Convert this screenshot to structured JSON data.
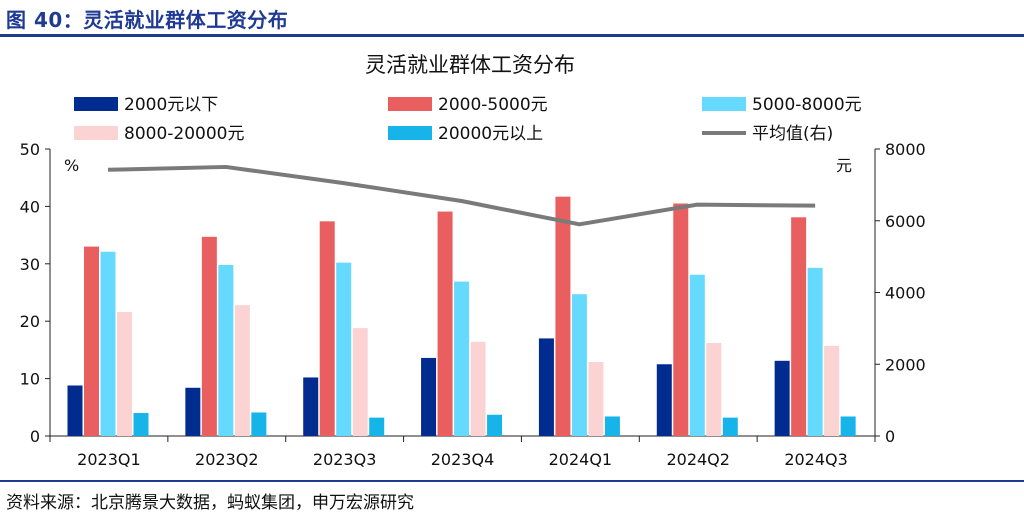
{
  "figure_label": "图 40：灵活就业群体工资分布",
  "source": "资料来源：北京腾景大数据，蚂蚁集团，申万宏源研究",
  "colors": {
    "brand": "#1f3a93",
    "series": [
      "#002b8f",
      "#e95f5f",
      "#66d9ff",
      "#fbd3d3",
      "#16b4e8",
      "#7a7a7a"
    ]
  },
  "chart_data": {
    "type": "bar",
    "title": "灵活就业群体工资分布",
    "categories": [
      "2023Q1",
      "2023Q2",
      "2023Q3",
      "2023Q4",
      "2024Q1",
      "2024Q2",
      "2024Q3"
    ],
    "series": [
      {
        "name": "2000元以下",
        "type": "bar",
        "axis": "left",
        "values": [
          8.8,
          8.4,
          10.2,
          13.6,
          17.0,
          12.5,
          13.1
        ]
      },
      {
        "name": "2000-5000元",
        "type": "bar",
        "axis": "left",
        "values": [
          33.0,
          34.7,
          37.4,
          39.1,
          41.7,
          40.5,
          38.1
        ]
      },
      {
        "name": "5000-8000元",
        "type": "bar",
        "axis": "left",
        "values": [
          32.1,
          29.8,
          30.2,
          26.9,
          24.7,
          28.1,
          29.3
        ]
      },
      {
        "name": "8000-20000元",
        "type": "bar",
        "axis": "left",
        "values": [
          21.6,
          22.8,
          18.8,
          16.4,
          12.9,
          16.2,
          15.7
        ]
      },
      {
        "name": "20000元以上",
        "type": "bar",
        "axis": "left",
        "values": [
          4.0,
          4.1,
          3.2,
          3.7,
          3.4,
          3.2,
          3.4
        ]
      },
      {
        "name": "平均值(右)",
        "type": "line",
        "axis": "right",
        "values": [
          7420,
          7500,
          7050,
          6550,
          5900,
          6450,
          6420
        ]
      }
    ],
    "ylabel_left": "%",
    "ylabel_right": "元",
    "ylim_left": [
      0,
      50
    ],
    "ylim_right": [
      0,
      8000
    ],
    "yticks_left": [
      "0",
      "10",
      "20",
      "30",
      "40",
      "50"
    ],
    "yticks_right": [
      "0",
      "2000",
      "4000",
      "6000",
      "8000"
    ],
    "legend_position": "top",
    "grid": false
  }
}
